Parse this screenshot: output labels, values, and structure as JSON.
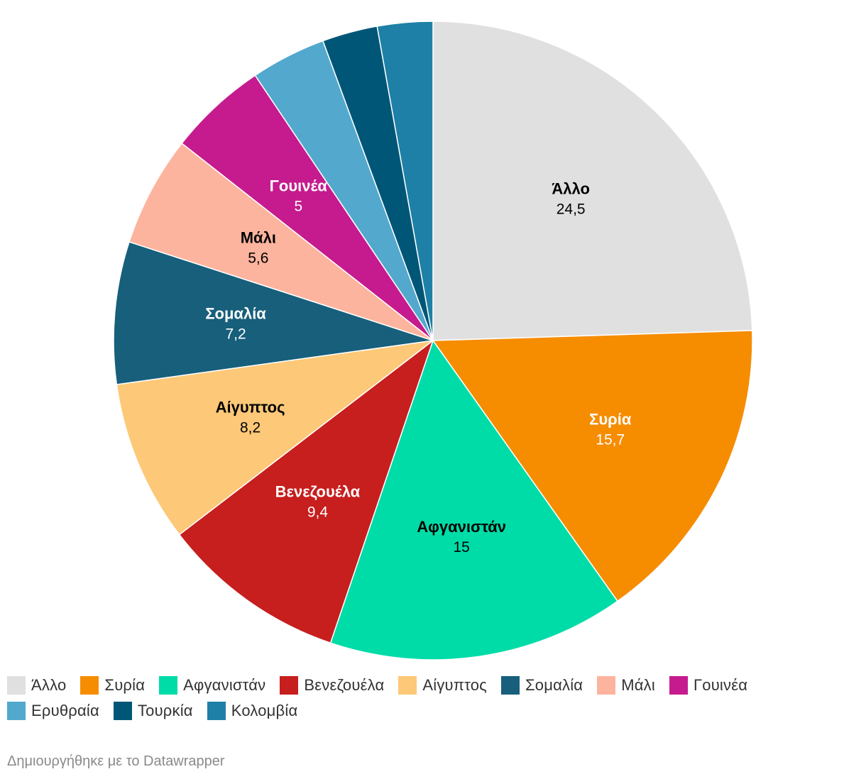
{
  "chart_data": {
    "type": "pie",
    "title": "",
    "slices": [
      {
        "name": "Άλλο",
        "value": 24.5,
        "display": "24,5",
        "color": "#e0e0e0",
        "label_color": "#000000",
        "labeled": true
      },
      {
        "name": "Συρία",
        "value": 15.7,
        "display": "15,7",
        "color": "#f68c00",
        "label_color": "#ffffff",
        "labeled": true
      },
      {
        "name": "Αφγανιστάν",
        "value": 15,
        "display": "15",
        "color": "#00dca8",
        "label_color": "#000000",
        "labeled": true
      },
      {
        "name": "Βενεζουέλα",
        "value": 9.4,
        "display": "9,4",
        "color": "#c71e1e",
        "label_color": "#ffffff",
        "labeled": true
      },
      {
        "name": "Αίγυπτος",
        "value": 8.2,
        "display": "8,2",
        "color": "#fdc878",
        "label_color": "#000000",
        "labeled": true
      },
      {
        "name": "Σομαλία",
        "value": 7.2,
        "display": "7,2",
        "color": "#175f7b",
        "label_color": "#ffffff",
        "labeled": true
      },
      {
        "name": "Μάλι",
        "value": 5.6,
        "display": "5,6",
        "color": "#fdb49e",
        "label_color": "#000000",
        "labeled": true
      },
      {
        "name": "Γουινέα",
        "value": 5,
        "display": "5",
        "color": "#c51b8e",
        "label_color": "#ffffff",
        "labeled": true
      },
      {
        "name": "Ερυθραία",
        "value": 3.8,
        "display": "",
        "color": "#52a9cd",
        "label_color": "#000000",
        "labeled": false
      },
      {
        "name": "Τουρκία",
        "value": 2.8,
        "display": "",
        "color": "#005677",
        "label_color": "#ffffff",
        "labeled": false
      },
      {
        "name": "Κολομβία",
        "value": 2.8,
        "display": "",
        "color": "#1e80a6",
        "label_color": "#ffffff",
        "labeled": false
      }
    ],
    "legend_placement": "bottom"
  },
  "footer": {
    "credit": "Δημιουργήθηκε με το Datawrapper"
  }
}
